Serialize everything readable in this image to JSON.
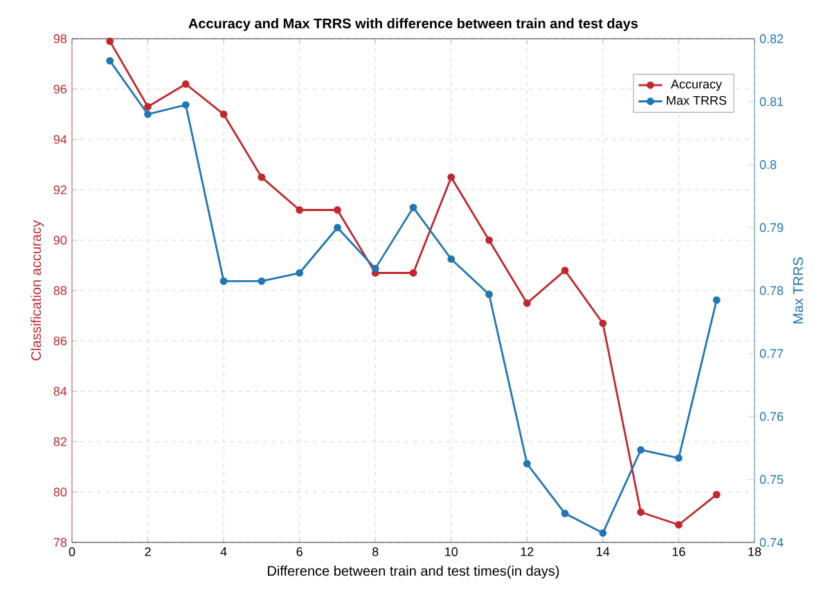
{
  "chart_data": {
    "type": "line",
    "title": "Accuracy and Max TRRS with difference between train and test days",
    "xlabel": "Difference between train and test times(in days)",
    "ylabel": "Classification accuracy",
    "y2label": "Max TRRS",
    "x": [
      1,
      2,
      3,
      4,
      5,
      6,
      7,
      8,
      9,
      10,
      11,
      12,
      13,
      14,
      15,
      16,
      17
    ],
    "series": [
      {
        "name": "Accuracy",
        "color": "#c1272d",
        "values": [
          97.9,
          95.3,
          96.2,
          95.0,
          92.5,
          91.2,
          91.2,
          88.7,
          88.7,
          92.5,
          90.0,
          87.5,
          88.8,
          86.7,
          79.2,
          78.7,
          79.9
        ]
      },
      {
        "name": "Max TRRS",
        "color": "#1f77b4",
        "axis": "y2",
        "values": [
          0.8165,
          0.808,
          0.8095,
          0.7815,
          0.7815,
          0.7828,
          0.79,
          0.7835,
          0.7932,
          0.785,
          0.7794,
          0.7525,
          0.7446,
          0.7415,
          0.7547,
          0.7534,
          0.7785
        ]
      }
    ],
    "xlim": [
      0,
      18
    ],
    "xticks": [
      0,
      2,
      4,
      6,
      8,
      10,
      12,
      14,
      16,
      18
    ],
    "ylim": [
      78,
      98
    ],
    "yticks": [
      78,
      80,
      82,
      84,
      86,
      88,
      90,
      92,
      94,
      96,
      98
    ],
    "y2lim": [
      0.74,
      0.82
    ],
    "y2ticks": [
      0.74,
      0.75,
      0.76,
      0.77,
      0.78,
      0.79,
      0.8,
      0.81,
      0.82
    ],
    "grid": true,
    "legend": "top right",
    "marker": "circle",
    "line_style": "solid"
  }
}
